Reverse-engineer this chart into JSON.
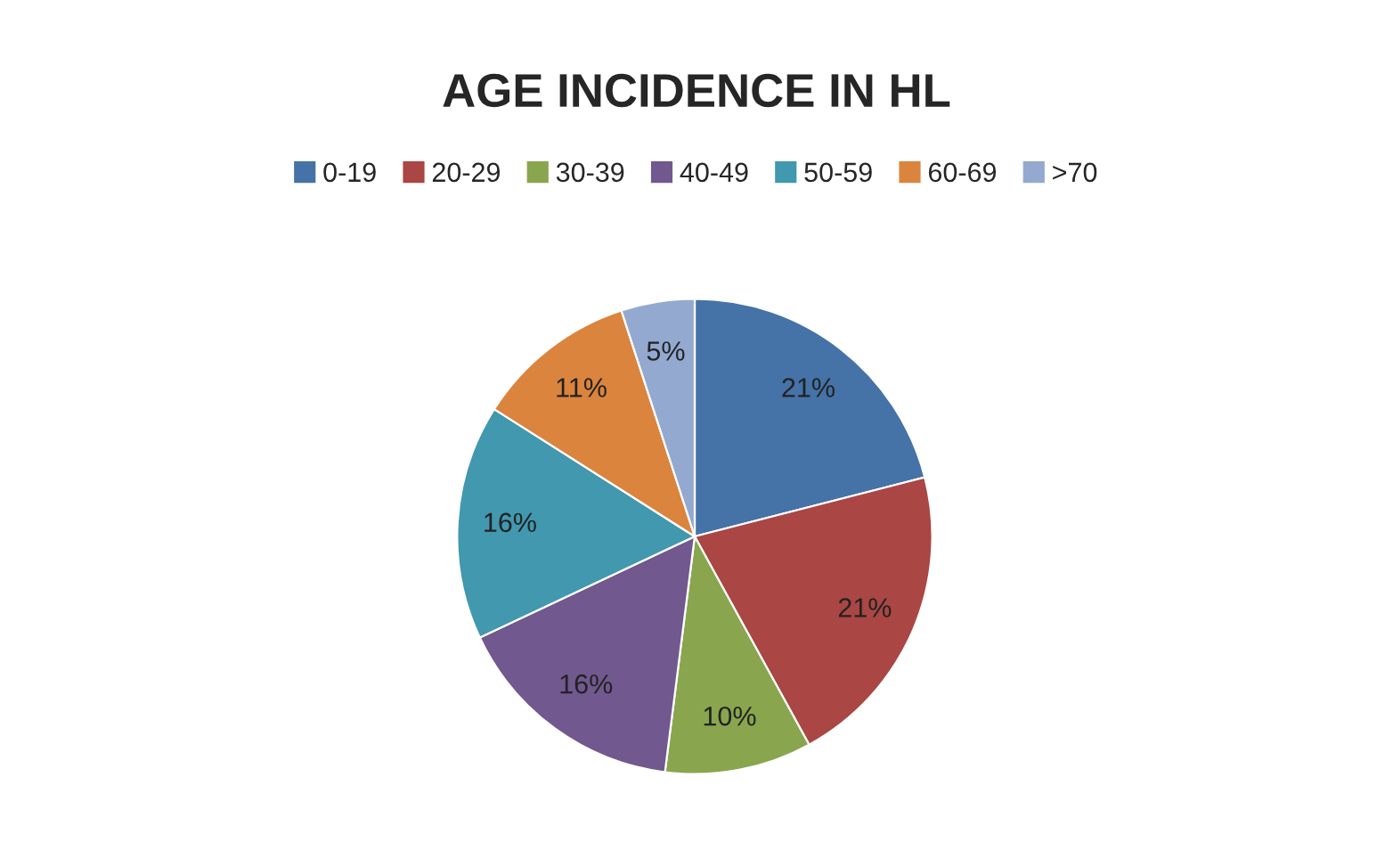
{
  "chart_data": {
    "type": "pie",
    "title": "AGE INCIDENCE IN HL",
    "categories": [
      "0-19",
      "20-29",
      "30-39",
      "40-49",
      "50-59",
      "60-69",
      ">70"
    ],
    "values": [
      21,
      21,
      10,
      16,
      16,
      11,
      5
    ],
    "value_labels": [
      "21%",
      "21%",
      "10%",
      "16%",
      "16%",
      "11%",
      "5%"
    ],
    "colors": [
      "#4572a7",
      "#aa4643",
      "#89a54e",
      "#71588f",
      "#4198af",
      "#db843d",
      "#93a9cf"
    ],
    "legend": "top"
  }
}
